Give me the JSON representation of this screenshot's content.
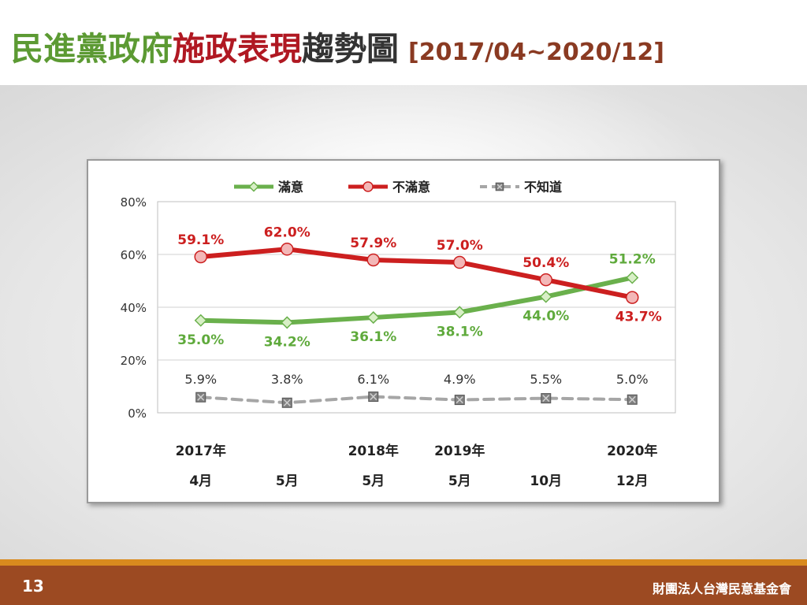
{
  "title": {
    "seg1": "民進黨政府",
    "seg2": "施政表現",
    "seg3": "趨勢圖",
    "seg4": "[2017/04~2020/12]"
  },
  "footer": {
    "page_number": "13",
    "org_name": "財團法人台灣民意基金會"
  },
  "chart_data": {
    "type": "line",
    "categories": [
      {
        "line1": "2017年",
        "line2": "4月"
      },
      {
        "line1": "",
        "line2": "5月"
      },
      {
        "line1": "2018年",
        "line2": "5月"
      },
      {
        "line1": "2019年",
        "line2": "5月"
      },
      {
        "line1": "",
        "line2": "10月"
      },
      {
        "line1": "2020年",
        "line2": "12月"
      }
    ],
    "ylim": [
      0,
      80
    ],
    "yticks": [
      {
        "value": 0,
        "label": "0%"
      },
      {
        "value": 20,
        "label": "20%"
      },
      {
        "value": 40,
        "label": "40%"
      },
      {
        "value": 60,
        "label": "60%"
      },
      {
        "value": 80,
        "label": "80%"
      }
    ],
    "grid": true,
    "legend_position": "top",
    "series": [
      {
        "name": "滿意",
        "color": "#6ab04c",
        "marker_fill": "#d8efc6",
        "marker": "diamond",
        "line_style": "solid",
        "label_position": "below",
        "values": [
          35.0,
          34.2,
          36.1,
          38.1,
          44.0,
          51.2
        ],
        "labels": [
          "35.0%",
          "34.2%",
          "36.1%",
          "38.1%",
          "44.0%",
          "51.2%"
        ]
      },
      {
        "name": "不滿意",
        "color": "#cc1f1f",
        "marker_fill": "#f3b7b7",
        "marker": "circle",
        "line_style": "solid",
        "label_position": "above",
        "values": [
          59.1,
          62.0,
          57.9,
          57.0,
          50.4,
          43.7
        ],
        "labels": [
          "59.1%",
          "62.0%",
          "57.9%",
          "57.0%",
          "50.4%",
          "43.7%"
        ]
      },
      {
        "name": "不知道",
        "color": "#a6a6a6",
        "marker_fill": "#808080",
        "marker": "square-x",
        "line_style": "dashed",
        "label_position": "top-row",
        "values": [
          5.9,
          3.8,
          6.1,
          4.9,
          5.5,
          5.0
        ],
        "labels": [
          "5.9%",
          "3.8%",
          "6.1%",
          "4.9%",
          "5.5%",
          "5.0%"
        ]
      }
    ]
  }
}
